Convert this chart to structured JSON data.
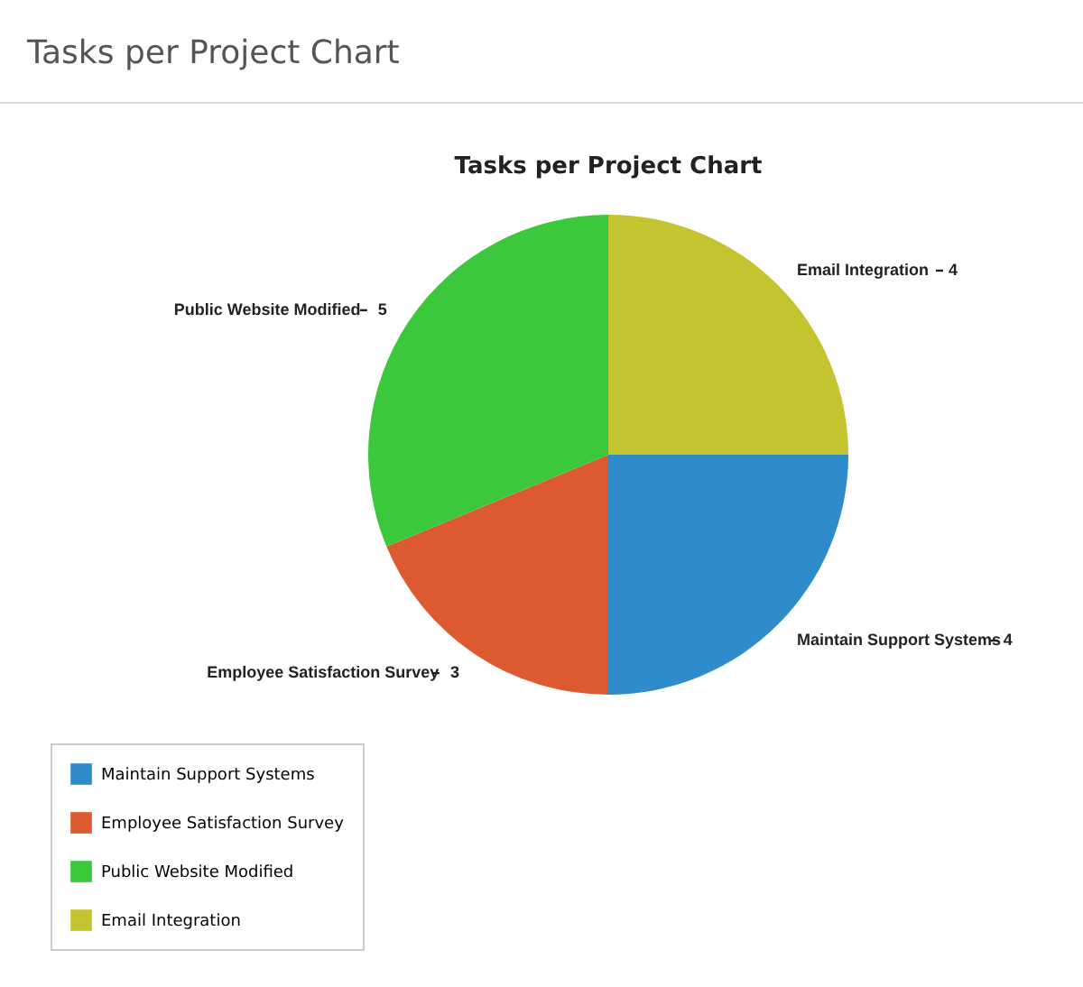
{
  "chart_data": {
    "type": "pie",
    "title": "Tasks per Project Chart",
    "annotations": [
      "Tasks per Project Chart"
    ],
    "categories": [
      "Maintain Support Systems",
      "Employee Satisfaction Survey",
      "Public Website Modified",
      "Email Integration"
    ],
    "values": [
      4,
      3,
      5,
      4
    ],
    "data_labels": true,
    "colors": [
      "#2f8ccb",
      "#dd5a30",
      "#3cc83c",
      "#c4c430"
    ],
    "legend": "bottom left"
  }
}
